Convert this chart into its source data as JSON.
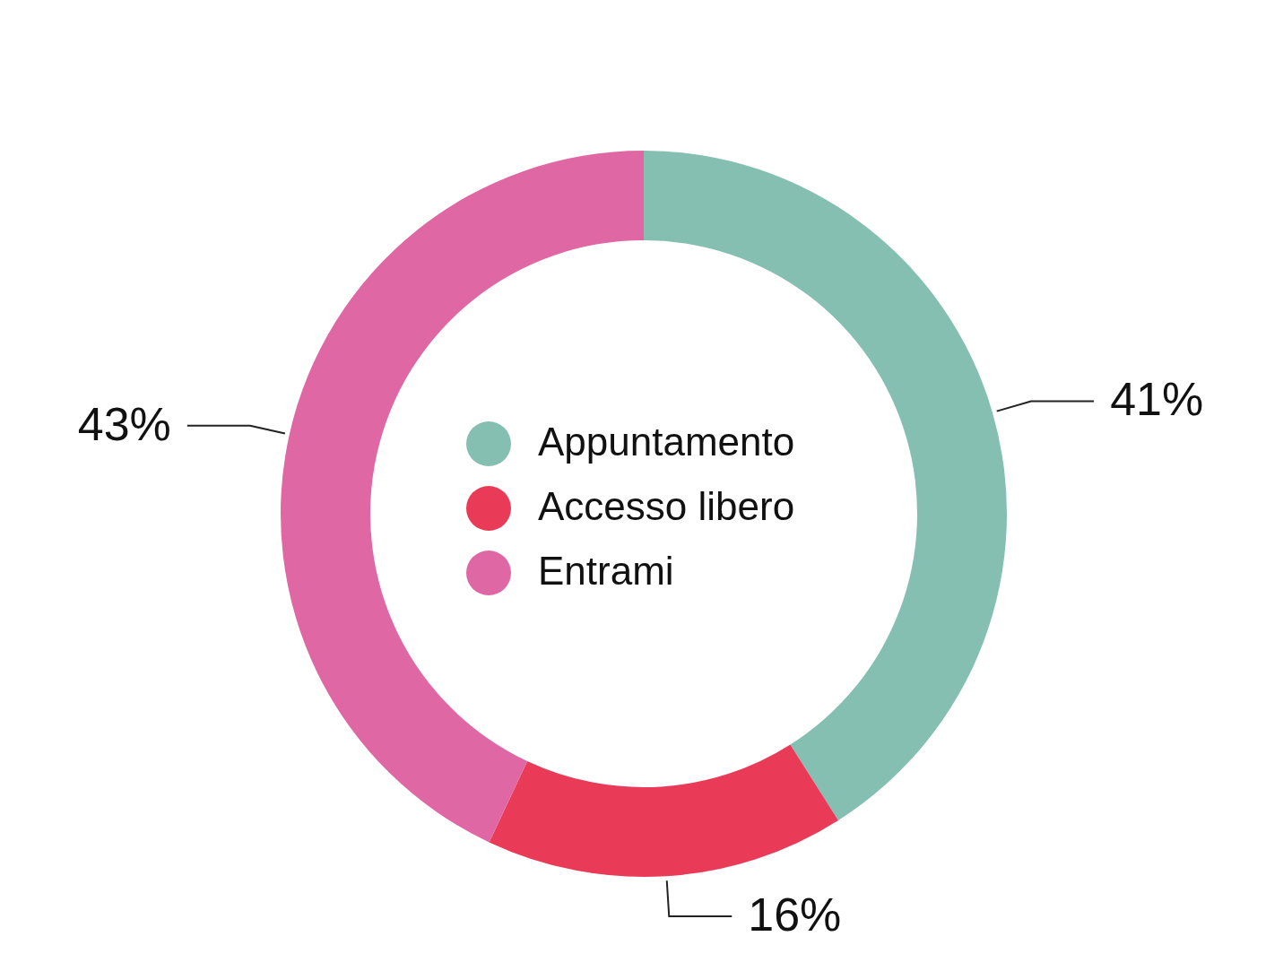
{
  "chart_data": {
    "type": "donut",
    "categories": [
      "Appuntamento",
      "Accesso libero",
      "Entrami"
    ],
    "values": [
      41,
      16,
      43
    ],
    "colors": [
      "#84bfb2",
      "#e93a57",
      "#df68a4"
    ],
    "value_labels": [
      "41%",
      "16%",
      "43%"
    ],
    "legend": "center"
  }
}
